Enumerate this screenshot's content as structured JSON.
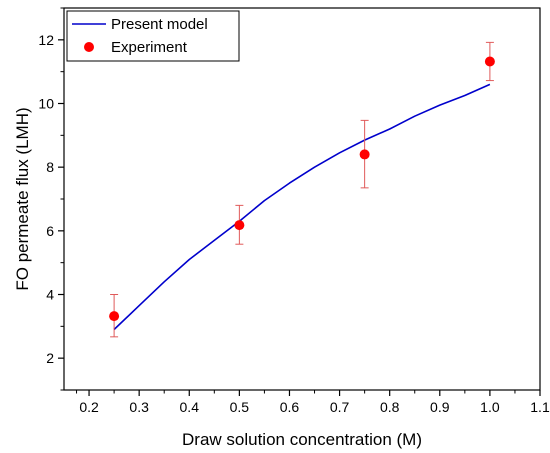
{
  "chart_data": {
    "type": "line",
    "xlabel": "Draw solution concentration (M)",
    "ylabel": "FO permeate flux (LMH)",
    "xlim": [
      0.15,
      1.1
    ],
    "ylim": [
      1,
      13
    ],
    "xticks": [
      0.2,
      0.3,
      0.4,
      0.5,
      0.6,
      0.7,
      0.8,
      0.9,
      1.0,
      1.1
    ],
    "xtick_labels": [
      "0.2",
      "0.3",
      "0.4",
      "0.5",
      "0.6",
      "0.7",
      "0.8",
      "0.9",
      "1.0",
      "1.1"
    ],
    "yticks": [
      2,
      4,
      6,
      8,
      10,
      12
    ],
    "ytick_labels": [
      "2",
      "4",
      "6",
      "8",
      "10",
      "12"
    ],
    "grid": false,
    "legend_position": "top-left",
    "series": [
      {
        "name": "Present model",
        "kind": "line",
        "color": "#0000cc",
        "x": [
          0.25,
          0.3,
          0.35,
          0.4,
          0.45,
          0.5,
          0.55,
          0.6,
          0.65,
          0.7,
          0.75,
          0.8,
          0.85,
          0.9,
          0.95,
          1.0
        ],
        "y": [
          2.9,
          3.65,
          4.4,
          5.1,
          5.7,
          6.3,
          6.95,
          7.5,
          8.0,
          8.45,
          8.85,
          9.2,
          9.6,
          9.95,
          10.25,
          10.6
        ]
      },
      {
        "name": "Experiment",
        "kind": "scatter",
        "color": "#ff0000",
        "errorbar_color": "#e05a5a",
        "x": [
          0.25,
          0.5,
          0.75,
          1.0
        ],
        "y": [
          3.32,
          6.18,
          8.4,
          11.32
        ],
        "err_low": [
          0.65,
          0.6,
          1.05,
          0.6
        ],
        "err_high": [
          0.68,
          0.62,
          1.07,
          0.6
        ]
      }
    ]
  }
}
